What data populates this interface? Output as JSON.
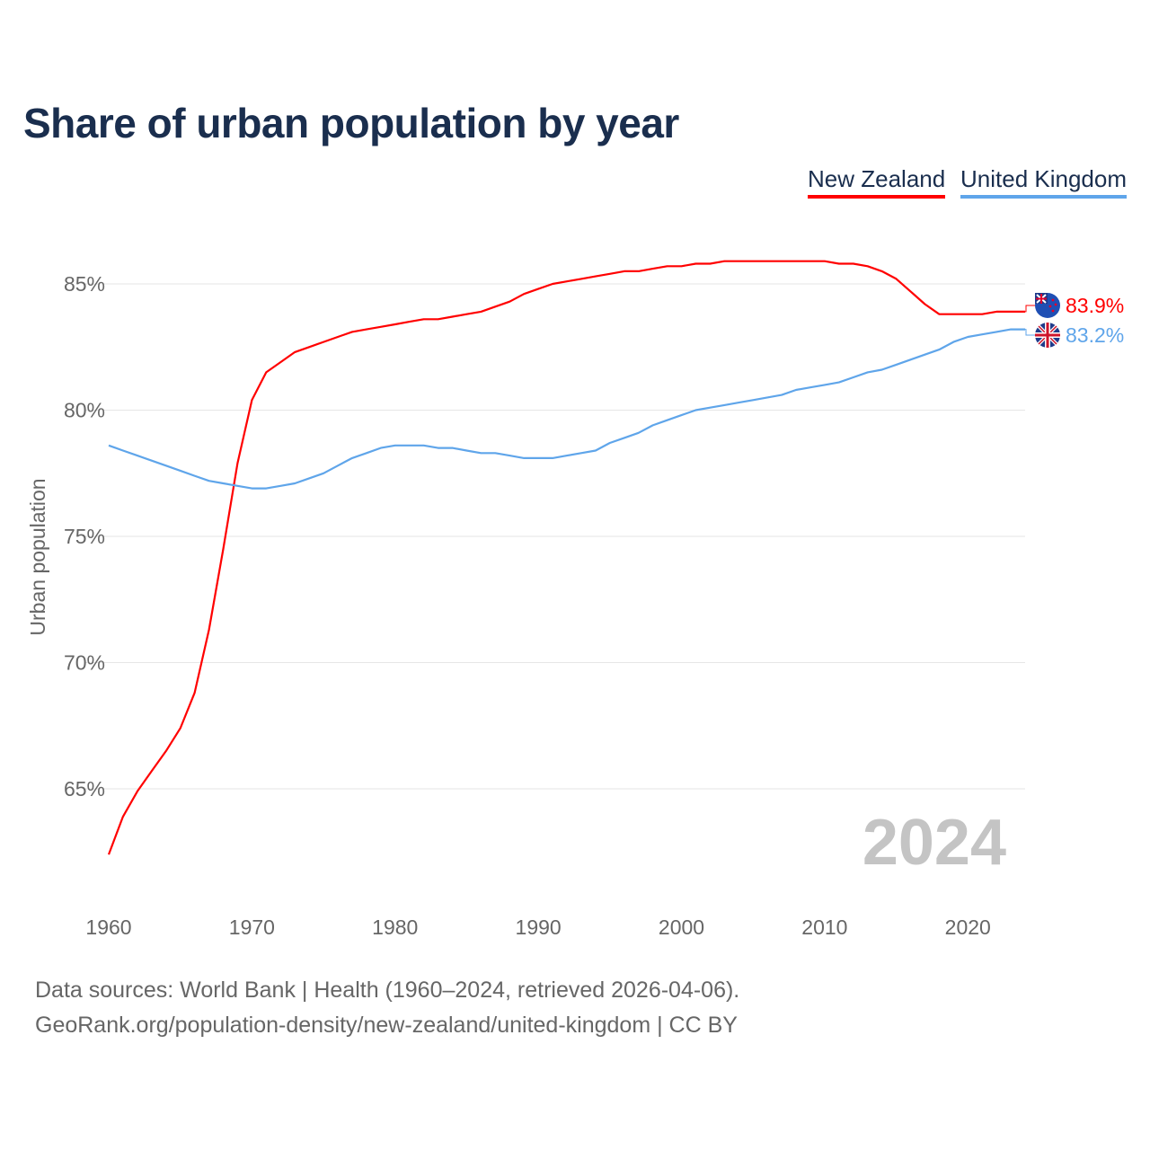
{
  "chart_data": {
    "type": "line",
    "title": "Share of urban population by year",
    "xlabel": "",
    "ylabel": "Urban population",
    "xlim": [
      1960,
      2024
    ],
    "ylim": [
      61.5,
      87.5
    ],
    "x_ticks": [
      1960,
      1970,
      1980,
      1990,
      2000,
      2010,
      2020
    ],
    "x_tick_labels": [
      "1960",
      "1970",
      "1980",
      "1990",
      "2000",
      "2010",
      "2020"
    ],
    "y_ticks": [
      65,
      70,
      75,
      80,
      85
    ],
    "y_tick_labels": [
      "65%",
      "70%",
      "75%",
      "80%",
      "85%"
    ],
    "grid": true,
    "legend_position": "top-right",
    "year_watermark": "2024",
    "x_start": 1960,
    "series": [
      {
        "name": "New Zealand",
        "color": "#ff0000",
        "flag": "new-zealand-flag",
        "end_label": "83.9%",
        "values": [
          62.4,
          63.9,
          64.9,
          65.7,
          66.5,
          67.4,
          68.8,
          71.3,
          74.5,
          77.9,
          80.4,
          81.5,
          81.9,
          82.3,
          82.5,
          82.7,
          82.9,
          83.1,
          83.2,
          83.3,
          83.4,
          83.5,
          83.6,
          83.6,
          83.7,
          83.8,
          83.9,
          84.1,
          84.3,
          84.6,
          84.8,
          85.0,
          85.1,
          85.2,
          85.3,
          85.4,
          85.5,
          85.5,
          85.6,
          85.7,
          85.7,
          85.8,
          85.8,
          85.9,
          85.9,
          85.9,
          85.9,
          85.9,
          85.9,
          85.9,
          85.9,
          85.8,
          85.8,
          85.7,
          85.5,
          85.2,
          84.7,
          84.2,
          83.8,
          83.8,
          83.8,
          83.8,
          83.9,
          83.9,
          83.9
        ]
      },
      {
        "name": "United Kingdom",
        "color": "#5fa5ea",
        "flag": "united-kingdom-flag",
        "end_label": "83.2%",
        "values": [
          78.6,
          78.4,
          78.2,
          78.0,
          77.8,
          77.6,
          77.4,
          77.2,
          77.1,
          77.0,
          76.9,
          76.9,
          77.0,
          77.1,
          77.3,
          77.5,
          77.8,
          78.1,
          78.3,
          78.5,
          78.6,
          78.6,
          78.6,
          78.5,
          78.5,
          78.4,
          78.3,
          78.3,
          78.2,
          78.1,
          78.1,
          78.1,
          78.2,
          78.3,
          78.4,
          78.7,
          78.9,
          79.1,
          79.4,
          79.6,
          79.8,
          80.0,
          80.1,
          80.2,
          80.3,
          80.4,
          80.5,
          80.6,
          80.8,
          80.9,
          81.0,
          81.1,
          81.3,
          81.5,
          81.6,
          81.8,
          82.0,
          82.2,
          82.4,
          82.7,
          82.9,
          83.0,
          83.1,
          83.2,
          83.2
        ]
      }
    ]
  },
  "footer": {
    "line1": "Data sources: World Bank | Health (1960–2024, retrieved 2026-04-06).",
    "line2": "GeoRank.org/population-density/new-zealand/united-kingdom | CC BY"
  }
}
